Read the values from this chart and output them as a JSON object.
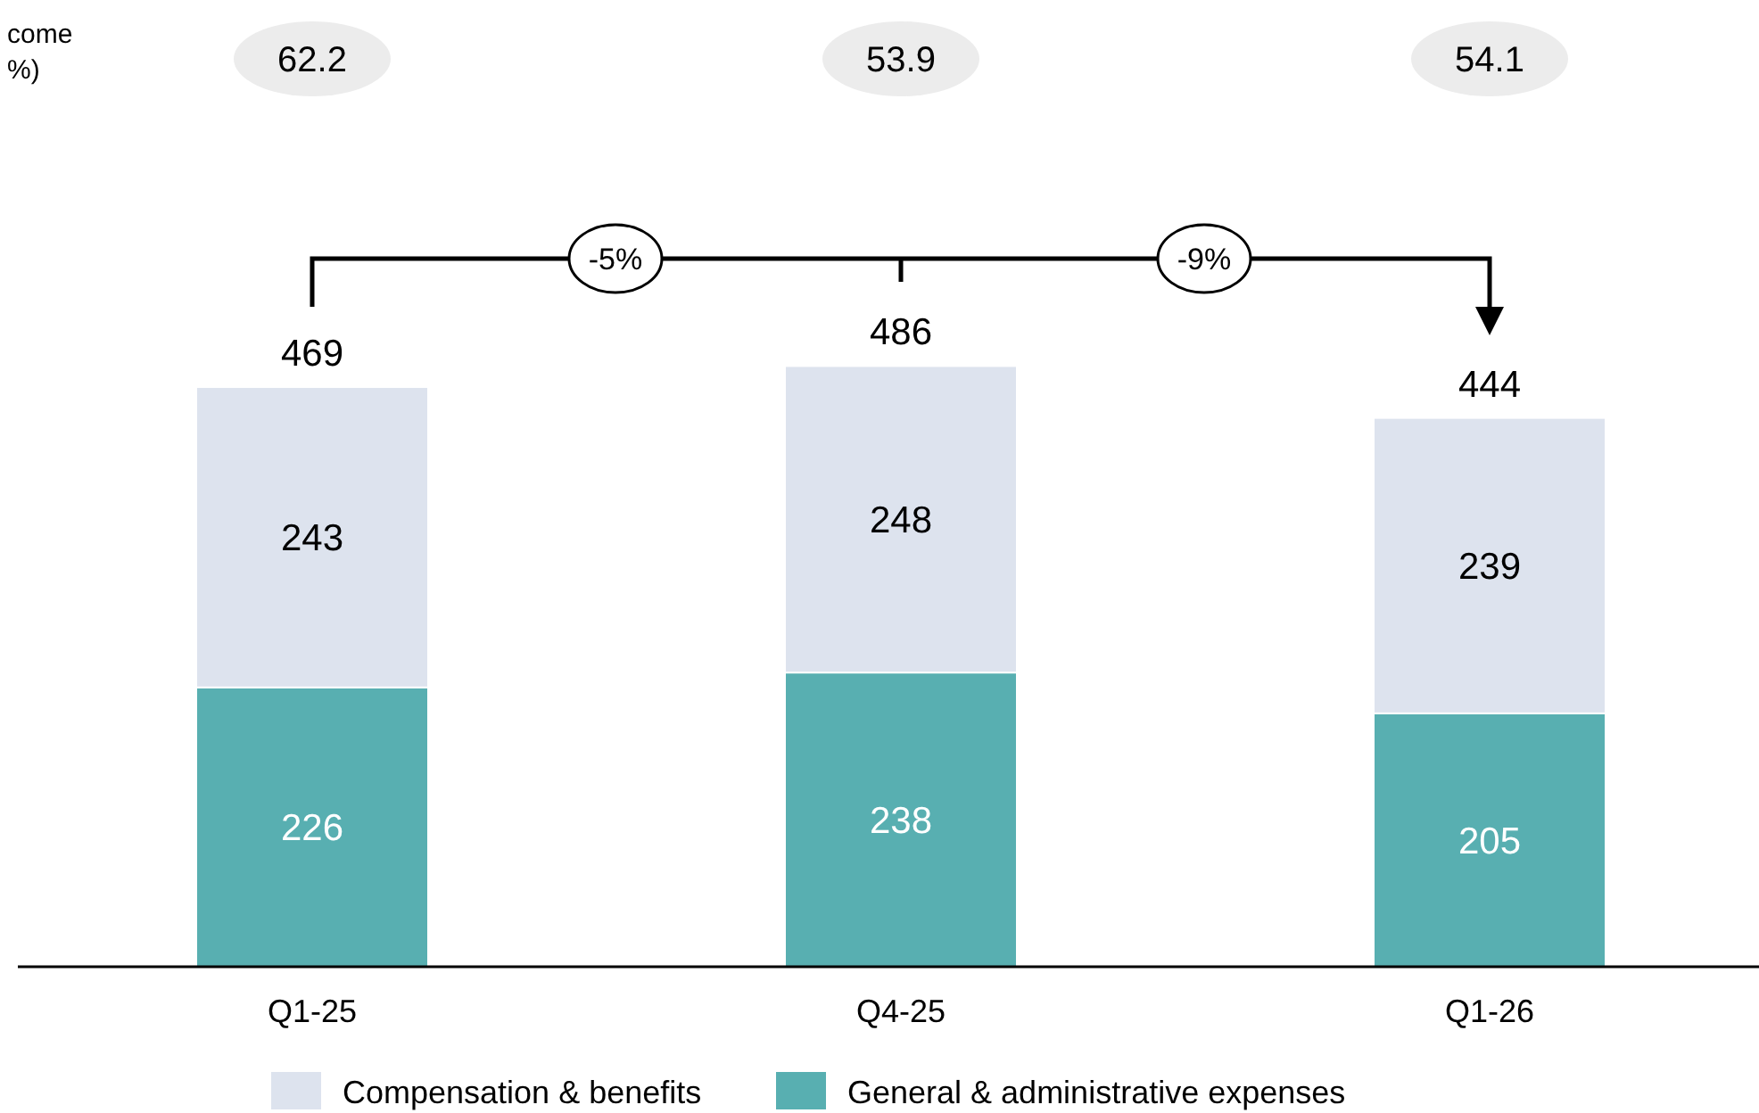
{
  "chart_data": {
    "type": "bar",
    "stacked": true,
    "categories": [
      "Q1-25",
      "Q4-25",
      "Q1-26"
    ],
    "series": [
      {
        "name": "General & administrative expenses",
        "color": "#58afb1",
        "values": [
          226,
          238,
          205
        ]
      },
      {
        "name": "Compensation & benefits",
        "color": "#dde3ee",
        "values": [
          243,
          248,
          239
        ]
      }
    ],
    "tick_labels": "x",
    "data_labels": true,
    "totals": [
      "469",
      "486",
      "444"
    ],
    "legend": "bottom",
    "annotations": [
      "come\n%)",
      "62.2",
      "53.9",
      "54.1",
      "-5%",
      "-9%"
    ]
  }
}
